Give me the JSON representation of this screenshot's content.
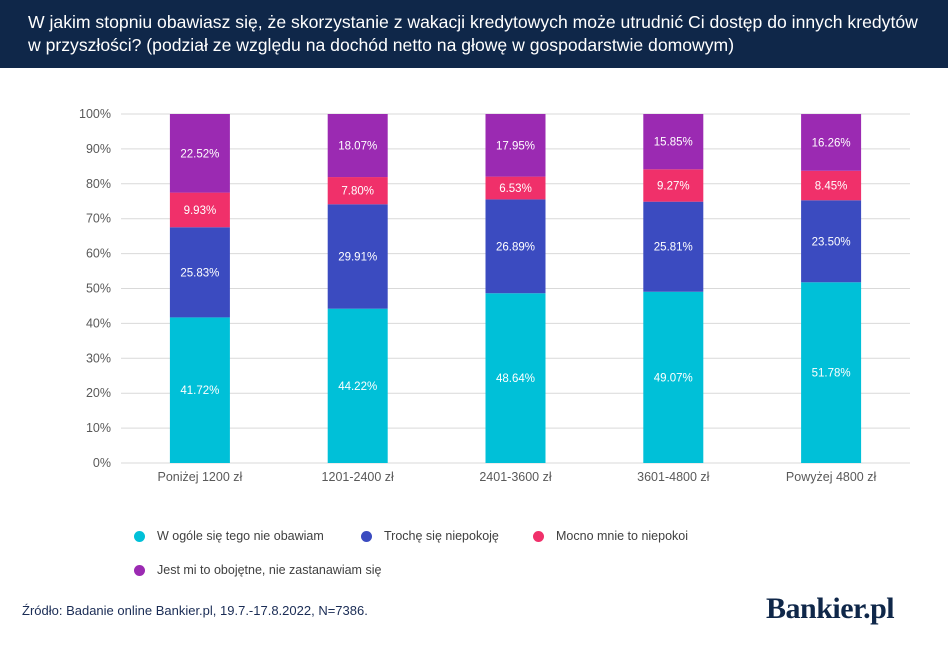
{
  "header": {
    "title": "W jakim stopniu obawiasz się, że skorzystanie z wakacji kredytowych może utrudnić Ci dostęp do innych kredytów w przyszłości? (podział ze względu na dochód netto na głowę w gospodarstwie domowym)"
  },
  "chart_data": {
    "type": "bar",
    "stacked": true,
    "categories": [
      "Poniżej 1200 zł",
      "1201-2400 zł",
      "2401-3600 zł",
      "3601-4800 zł",
      "Powyżej 4800 zł"
    ],
    "series": [
      {
        "name": "W ogóle się tego nie obawiam",
        "color": "#00c0d8",
        "values": [
          41.72,
          44.22,
          48.64,
          49.07,
          51.78
        ],
        "labels": [
          "41.72%",
          "44.22%",
          "48.64%",
          "49.07%",
          "51.78%"
        ]
      },
      {
        "name": "Trochę się niepokoję",
        "color": "#3b4bc0",
        "values": [
          25.83,
          29.91,
          26.89,
          25.81,
          23.5
        ],
        "labels": [
          "25.83%",
          "29.91%",
          "26.89%",
          "25.81%",
          "23.50%"
        ]
      },
      {
        "name": "Mocno mnie to niepokoi",
        "color": "#f0306a",
        "values": [
          9.93,
          7.8,
          6.53,
          9.27,
          8.45
        ],
        "labels": [
          "9.93%",
          "7.80%",
          "6.53%",
          "9.27%",
          "8.45%"
        ]
      },
      {
        "name": "Jest mi to obojętne, nie zastanawiam się",
        "color": "#9b2ab2",
        "values": [
          22.52,
          18.07,
          17.95,
          15.85,
          16.26
        ],
        "labels": [
          "22.52%",
          "18.07%",
          "17.95%",
          "15.85%",
          "16.26%"
        ]
      }
    ],
    "yticks": [
      "0%",
      "10%",
      "20%",
      "30%",
      "40%",
      "50%",
      "60%",
      "70%",
      "80%",
      "90%",
      "100%"
    ],
    "ylim": [
      0,
      100
    ],
    "grid": true,
    "legend_position": "bottom"
  },
  "footer": {
    "source": "Źródło: Badanie online Bankier.pl, 19.7.-17.8.2022, N=7386.",
    "brand": "Bankier.pl"
  }
}
